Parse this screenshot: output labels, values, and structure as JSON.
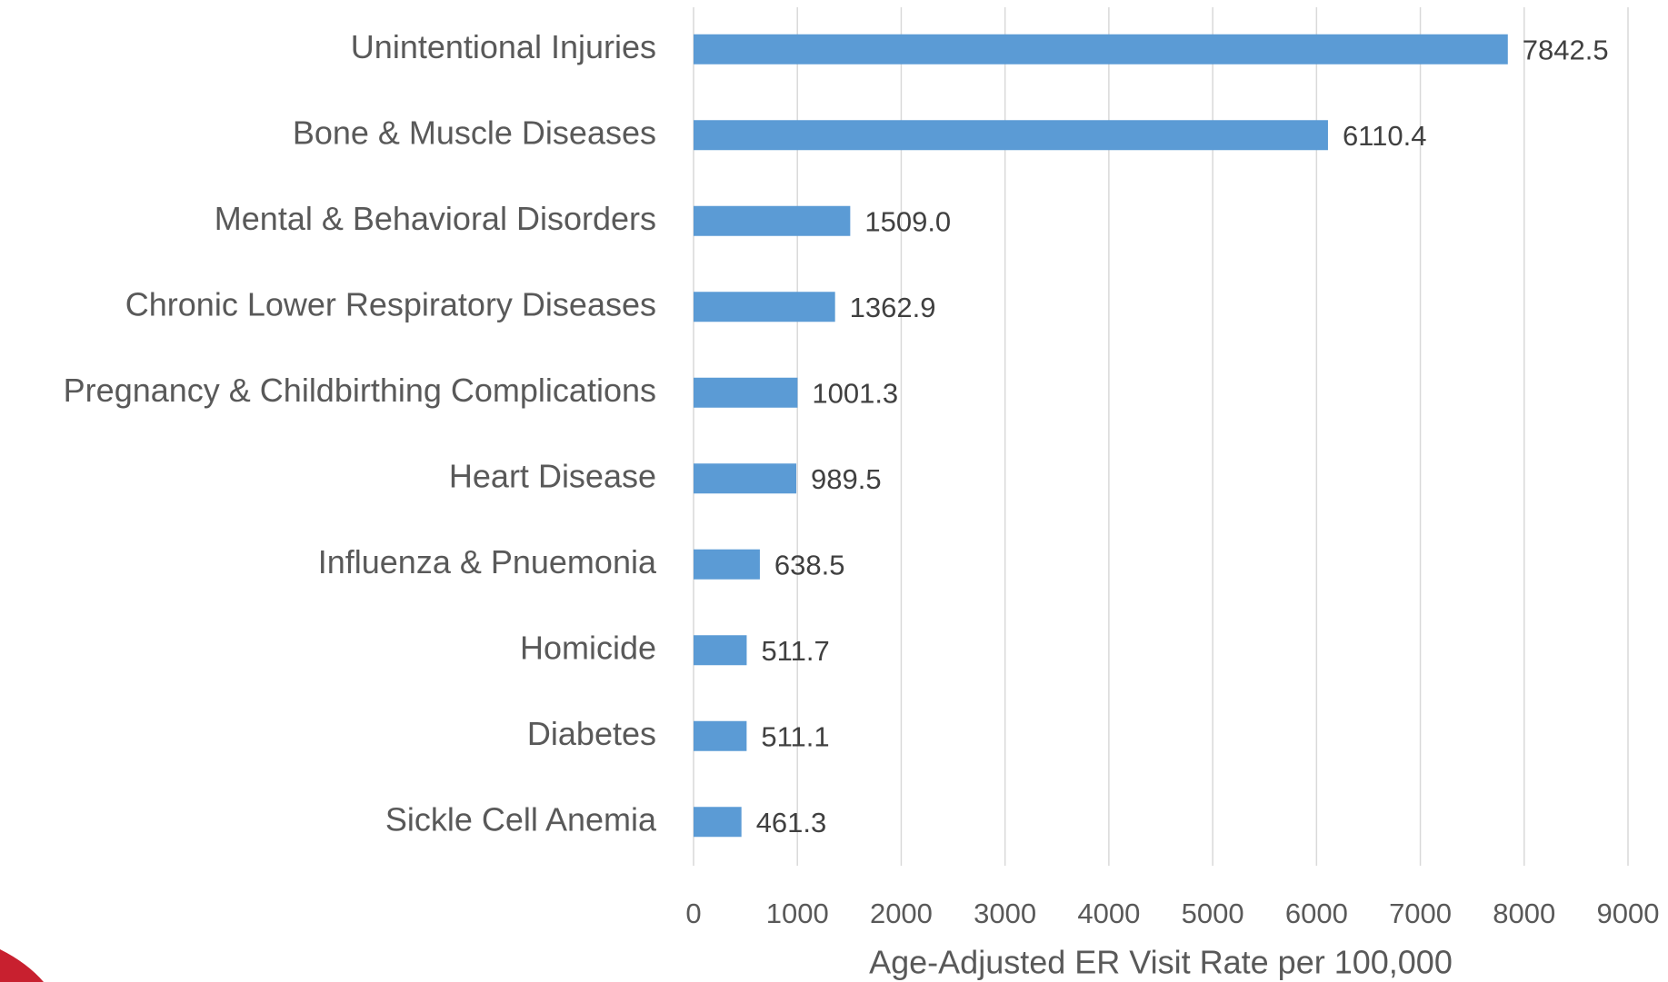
{
  "chart_data": {
    "type": "bar",
    "orientation": "horizontal",
    "x_axis_label": "Age-Adjusted ER Visit Rate per 100,000",
    "categories": [
      "Unintentional Injuries",
      "Bone & Muscle Diseases",
      "Mental & Behavioral Disorders",
      "Chronic Lower Respiratory Diseases",
      "Pregnancy & Childbirthing Complications",
      "Heart Disease",
      "Influenza & Pnuemonia",
      "Homicide",
      "Diabetes",
      "Sickle Cell Anemia"
    ],
    "values": [
      7842.5,
      6110.4,
      1509,
      1362.9,
      1001.3,
      989.5,
      638.5,
      511.7,
      511.1,
      461.3
    ],
    "value_labels": [
      "7842.5",
      "6110.4",
      "1509.0",
      "1362.9",
      "1001.3",
      "989.5",
      "638.5",
      "511.7",
      "511.1",
      "461.3"
    ],
    "color": "#5b9bd5",
    "xlim": [
      0,
      9000
    ],
    "xticks": [
      0,
      1000,
      2000,
      3000,
      4000,
      5000,
      6000,
      7000,
      8000,
      9000
    ],
    "grid": true
  }
}
